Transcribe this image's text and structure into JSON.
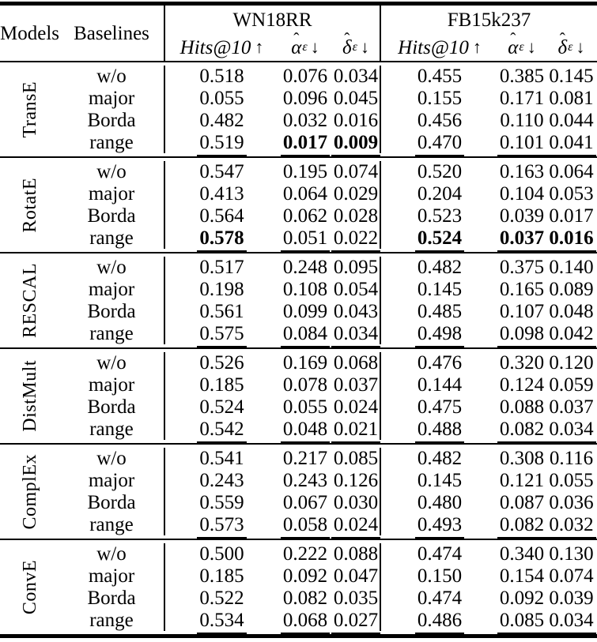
{
  "header": {
    "models_label": "Models",
    "baselines_label": "Baselines",
    "datasets": [
      "WN18RR",
      "FB15k237"
    ],
    "metrics": [
      {
        "hat": "",
        "base": "Hits@10",
        "sub": "",
        "arrow": "↑"
      },
      {
        "hat": "ˆ",
        "base": "α",
        "sub": "ε",
        "arrow": "↓"
      },
      {
        "hat": "ˆ",
        "base": "δ",
        "sub": "ε",
        "arrow": "↓"
      }
    ]
  },
  "table": {
    "blocks": [
      {
        "model": "TransE",
        "rows": [
          {
            "baseline": "w/o",
            "values": [
              {
                "v": "0.518"
              },
              {
                "v": "0.076"
              },
              {
                "v": "0.034"
              },
              {
                "v": "0.455"
              },
              {
                "v": "0.385"
              },
              {
                "v": "0.145"
              }
            ]
          },
          {
            "baseline": "major",
            "values": [
              {
                "v": "0.055"
              },
              {
                "v": "0.096"
              },
              {
                "v": "0.045"
              },
              {
                "v": "0.155"
              },
              {
                "v": "0.171"
              },
              {
                "v": "0.081"
              }
            ]
          },
          {
            "baseline": "Borda",
            "values": [
              {
                "v": "0.482"
              },
              {
                "v": "0.032"
              },
              {
                "v": "0.016"
              },
              {
                "v": "0.456"
              },
              {
                "v": "0.110"
              },
              {
                "v": "0.044"
              }
            ]
          },
          {
            "baseline": "range",
            "values": [
              {
                "v": "0.519",
                "u": true
              },
              {
                "v": "0.017",
                "b": true,
                "u": true
              },
              {
                "v": "0.009",
                "b": true,
                "u": true
              },
              {
                "v": "0.470",
                "u": true
              },
              {
                "v": "0.101",
                "u": true
              },
              {
                "v": "0.041",
                "u": true
              }
            ]
          }
        ]
      },
      {
        "model": "RotatE",
        "rows": [
          {
            "baseline": "w/o",
            "values": [
              {
                "v": "0.547"
              },
              {
                "v": "0.195"
              },
              {
                "v": "0.074"
              },
              {
                "v": "0.520"
              },
              {
                "v": "0.163"
              },
              {
                "v": "0.064"
              }
            ]
          },
          {
            "baseline": "major",
            "values": [
              {
                "v": "0.413"
              },
              {
                "v": "0.064"
              },
              {
                "v": "0.029"
              },
              {
                "v": "0.204"
              },
              {
                "v": "0.104"
              },
              {
                "v": "0.053"
              }
            ]
          },
          {
            "baseline": "Borda",
            "values": [
              {
                "v": "0.564"
              },
              {
                "v": "0.062"
              },
              {
                "v": "0.028"
              },
              {
                "v": "0.523"
              },
              {
                "v": "0.039"
              },
              {
                "v": "0.017"
              }
            ]
          },
          {
            "baseline": "range",
            "values": [
              {
                "v": "0.578",
                "b": true,
                "u": true
              },
              {
                "v": "0.051",
                "u": true
              },
              {
                "v": "0.022",
                "u": true
              },
              {
                "v": "0.524",
                "b": true,
                "u": true
              },
              {
                "v": "0.037",
                "b": true,
                "u": true
              },
              {
                "v": "0.016",
                "b": true,
                "u": true
              }
            ]
          }
        ]
      },
      {
        "model": "RESCAL",
        "rows": [
          {
            "baseline": "w/o",
            "values": [
              {
                "v": "0.517"
              },
              {
                "v": "0.248"
              },
              {
                "v": "0.095"
              },
              {
                "v": "0.482"
              },
              {
                "v": "0.375"
              },
              {
                "v": "0.140"
              }
            ]
          },
          {
            "baseline": "major",
            "values": [
              {
                "v": "0.198"
              },
              {
                "v": "0.108"
              },
              {
                "v": "0.054"
              },
              {
                "v": "0.145"
              },
              {
                "v": "0.165"
              },
              {
                "v": "0.089"
              }
            ]
          },
          {
            "baseline": "Borda",
            "values": [
              {
                "v": "0.561"
              },
              {
                "v": "0.099"
              },
              {
                "v": "0.043"
              },
              {
                "v": "0.485"
              },
              {
                "v": "0.107"
              },
              {
                "v": "0.048"
              }
            ]
          },
          {
            "baseline": "range",
            "values": [
              {
                "v": "0.575",
                "u": true
              },
              {
                "v": "0.084",
                "u": true
              },
              {
                "v": "0.034",
                "u": true
              },
              {
                "v": "0.498",
                "u": true
              },
              {
                "v": "0.098",
                "u": true
              },
              {
                "v": "0.042",
                "u": true
              }
            ]
          }
        ]
      },
      {
        "model": "DistMult",
        "rows": [
          {
            "baseline": "w/o",
            "values": [
              {
                "v": "0.526"
              },
              {
                "v": "0.169"
              },
              {
                "v": "0.068"
              },
              {
                "v": "0.476"
              },
              {
                "v": "0.320"
              },
              {
                "v": "0.120"
              }
            ]
          },
          {
            "baseline": "major",
            "values": [
              {
                "v": "0.185"
              },
              {
                "v": "0.078"
              },
              {
                "v": "0.037"
              },
              {
                "v": "0.144"
              },
              {
                "v": "0.124"
              },
              {
                "v": "0.059"
              }
            ]
          },
          {
            "baseline": "Borda",
            "values": [
              {
                "v": "0.524"
              },
              {
                "v": "0.055"
              },
              {
                "v": "0.024"
              },
              {
                "v": "0.475"
              },
              {
                "v": "0.088"
              },
              {
                "v": "0.037"
              }
            ]
          },
          {
            "baseline": "range",
            "values": [
              {
                "v": "0.542",
                "u": true
              },
              {
                "v": "0.048",
                "u": true
              },
              {
                "v": "0.021",
                "u": true
              },
              {
                "v": "0.488",
                "u": true
              },
              {
                "v": "0.082",
                "u": true
              },
              {
                "v": "0.034",
                "u": true
              }
            ]
          }
        ]
      },
      {
        "model": "ComplEx",
        "rows": [
          {
            "baseline": "w/o",
            "values": [
              {
                "v": "0.541"
              },
              {
                "v": "0.217"
              },
              {
                "v": "0.085"
              },
              {
                "v": "0.482"
              },
              {
                "v": "0.308"
              },
              {
                "v": "0.116"
              }
            ]
          },
          {
            "baseline": "major",
            "values": [
              {
                "v": "0.243"
              },
              {
                "v": "0.243"
              },
              {
                "v": "0.126"
              },
              {
                "v": "0.145"
              },
              {
                "v": "0.121"
              },
              {
                "v": "0.055"
              }
            ]
          },
          {
            "baseline": "Borda",
            "values": [
              {
                "v": "0.559"
              },
              {
                "v": "0.067"
              },
              {
                "v": "0.030"
              },
              {
                "v": "0.480"
              },
              {
                "v": "0.087"
              },
              {
                "v": "0.036"
              }
            ]
          },
          {
            "baseline": "range",
            "values": [
              {
                "v": "0.573",
                "u": true
              },
              {
                "v": "0.058",
                "u": true
              },
              {
                "v": "0.024",
                "u": true
              },
              {
                "v": "0.493",
                "u": true
              },
              {
                "v": "0.082",
                "u": true
              },
              {
                "v": "0.032",
                "u": true
              }
            ]
          }
        ]
      },
      {
        "model": "ConvE",
        "rows": [
          {
            "baseline": "w/o",
            "values": [
              {
                "v": "0.500"
              },
              {
                "v": "0.222"
              },
              {
                "v": "0.088"
              },
              {
                "v": "0.474"
              },
              {
                "v": "0.340"
              },
              {
                "v": "0.130"
              }
            ]
          },
          {
            "baseline": "major",
            "values": [
              {
                "v": "0.185"
              },
              {
                "v": "0.092"
              },
              {
                "v": "0.047"
              },
              {
                "v": "0.150"
              },
              {
                "v": "0.154"
              },
              {
                "v": "0.074"
              }
            ]
          },
          {
            "baseline": "Borda",
            "values": [
              {
                "v": "0.522"
              },
              {
                "v": "0.082"
              },
              {
                "v": "0.035"
              },
              {
                "v": "0.474"
              },
              {
                "v": "0.092"
              },
              {
                "v": "0.039"
              }
            ]
          },
          {
            "baseline": "range",
            "values": [
              {
                "v": "0.534",
                "u": true
              },
              {
                "v": "0.068",
                "u": true
              },
              {
                "v": "0.027",
                "u": true
              },
              {
                "v": "0.486",
                "u": true
              },
              {
                "v": "0.085",
                "u": true
              },
              {
                "v": "0.034",
                "u": true
              }
            ]
          }
        ]
      }
    ]
  }
}
